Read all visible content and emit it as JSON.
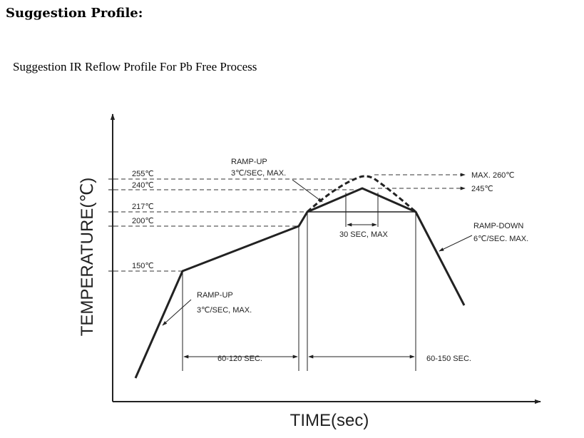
{
  "page": {
    "heading": "Suggestion Profile:",
    "subheading": "Suggestion IR Reflow Profile For Pb Free Process"
  },
  "diagram": {
    "y_axis_label": "TEMPERATURE(℃)",
    "x_axis_label": "TIME(sec)",
    "temperature_labels": {
      "t255": "255℃",
      "t240": "240℃",
      "t217": "217℃",
      "t200": "200℃",
      "t150": "150℃"
    },
    "right_labels": {
      "max260": "MAX. 260℃",
      "t245": "245℃"
    },
    "annotations": {
      "ramp_up_top_line1": "RAMP-UP",
      "ramp_up_top_line2": "3℃/SEC, MAX.",
      "ramp_up_bottom_line1": "RAMP-UP",
      "ramp_up_bottom_line2": "3℃/SEC, MAX.",
      "ramp_down_line1": "RAMP-DOWN",
      "ramp_down_line2": "6℃/SEC. MAX.",
      "peak_time": "30 SEC, MAX"
    },
    "durations": {
      "preheat": "60-120 SEC.",
      "above_liquidus": "60-150 SEC."
    }
  }
}
